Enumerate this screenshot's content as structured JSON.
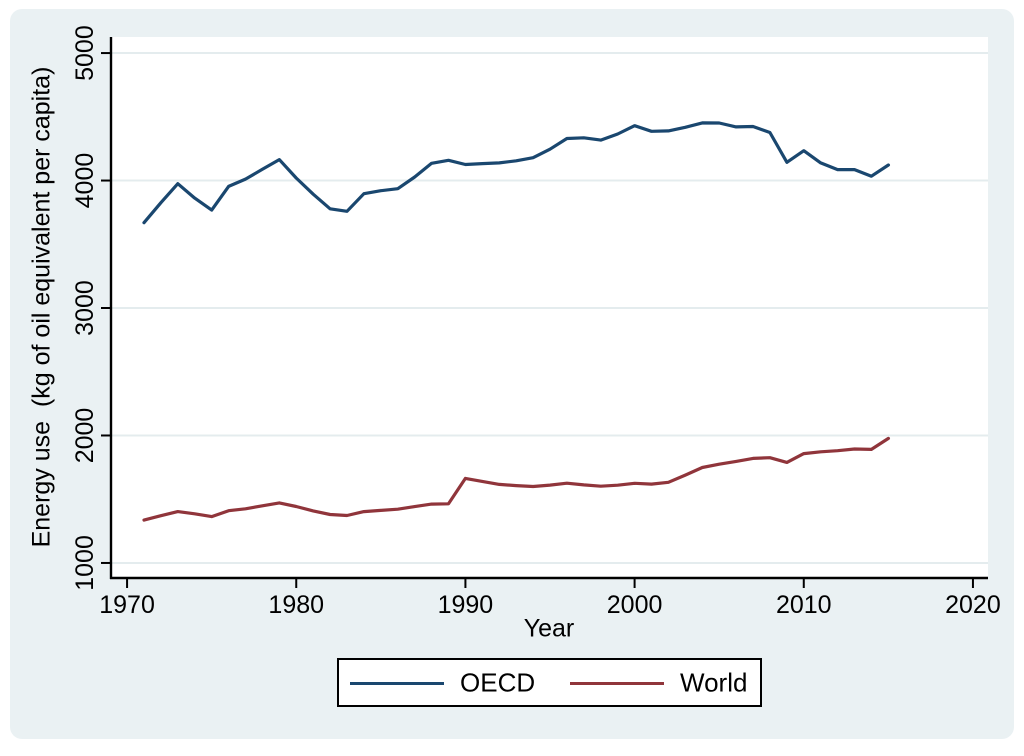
{
  "figure": {
    "background_color": "#eaf1f3",
    "plot_background": "#ffffff",
    "grid_color": "#e4ecee",
    "axis_color": "#000000",
    "legend_border_color": "#000000"
  },
  "chart_data": {
    "type": "line",
    "title": "",
    "xlabel": "Year",
    "ylabel": "Energy use  (kg of oil equivalent per capita)",
    "x_ticks": [
      1970,
      1980,
      1990,
      2000,
      2010,
      2020
    ],
    "y_ticks": [
      1000,
      2000,
      3000,
      4000,
      5000
    ],
    "xlim": [
      1969.05,
      2020.89
    ],
    "ylim": [
      882,
      5126
    ],
    "grid": "horizontal",
    "legend_position": "bottom",
    "x": [
      1971,
      1972,
      1973,
      1974,
      1975,
      1976,
      1977,
      1978,
      1979,
      1980,
      1981,
      1982,
      1983,
      1984,
      1985,
      1986,
      1987,
      1988,
      1989,
      1990,
      1991,
      1992,
      1993,
      1994,
      1995,
      1996,
      1997,
      1998,
      1999,
      2000,
      2001,
      2002,
      2003,
      2004,
      2005,
      2006,
      2007,
      2008,
      2009,
      2010,
      2011,
      2012,
      2013,
      2014,
      2015
    ],
    "series": [
      {
        "name": "OECD",
        "color": "#1a476f",
        "values": [
          3669,
          3826,
          3975,
          3862,
          3768,
          3954,
          4011,
          4088,
          4164,
          4020,
          3893,
          3778,
          3759,
          3897,
          3920,
          3936,
          4028,
          4135,
          4159,
          4126,
          4133,
          4138,
          4155,
          4179,
          4246,
          4330,
          4335,
          4317,
          4365,
          4430,
          4386,
          4389,
          4418,
          4452,
          4451,
          4421,
          4424,
          4377,
          4143,
          4234,
          4138,
          4086,
          4086,
          4034,
          4122
        ]
      },
      {
        "name": "World",
        "color": "#90353b",
        "values": [
          1336,
          1371,
          1403,
          1386,
          1364,
          1410,
          1425,
          1448,
          1471,
          1443,
          1408,
          1380,
          1372,
          1403,
          1412,
          1422,
          1442,
          1462,
          1464,
          1663,
          1640,
          1616,
          1607,
          1600,
          1611,
          1626,
          1612,
          1602,
          1610,
          1625,
          1619,
          1633,
          1689,
          1749,
          1775,
          1797,
          1820,
          1826,
          1789,
          1858,
          1872,
          1881,
          1894,
          1891,
          1977
        ]
      }
    ]
  }
}
